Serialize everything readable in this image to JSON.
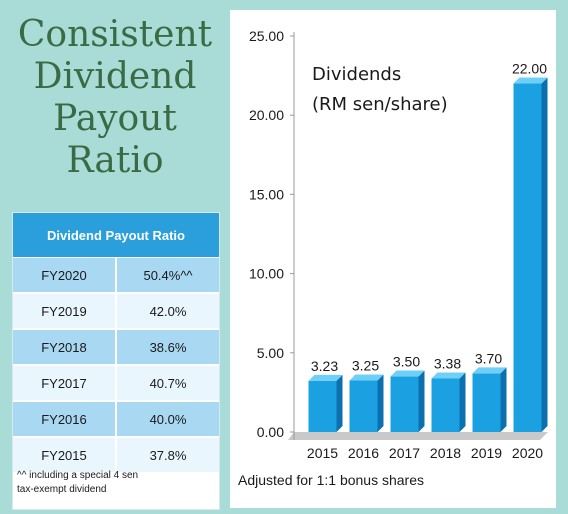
{
  "title_lines": [
    "Consistent",
    "Dividend",
    "Payout",
    "Ratio"
  ],
  "payout_table": {
    "header": "Dividend Payout Ratio",
    "rows": [
      {
        "year": "FY2020",
        "ratio": "50.4%^^"
      },
      {
        "year": "FY2019",
        "ratio": "42.0%"
      },
      {
        "year": "FY2018",
        "ratio": "38.6%"
      },
      {
        "year": "FY2017",
        "ratio": "40.7%"
      },
      {
        "year": "FY2016",
        "ratio": "40.0%"
      },
      {
        "year": "FY2015",
        "ratio": "37.8%"
      }
    ],
    "footnote_line1": "^^ including a special 4 sen",
    "footnote_line2": "tax-exempt dividend"
  },
  "chart_note": "Adjusted for 1:1 bonus shares",
  "colors": {
    "bar": "#1ba1e2",
    "bar_top": "#6fd0f7",
    "bar_side": "#0c6fae",
    "table_header": "#2a9fdc",
    "title": "#3b6b45"
  },
  "chart_data": {
    "type": "bar",
    "categories": [
      "2015",
      "2016",
      "2017",
      "2018",
      "2019",
      "2020"
    ],
    "values": [
      3.23,
      3.25,
      3.5,
      3.38,
      3.7,
      22.0
    ],
    "data_labels": [
      "3.23",
      "3.25",
      "3.50",
      "3.38",
      "3.70",
      "22.00"
    ],
    "title_line1": "Dividends",
    "title_line2": "(RM sen/share)",
    "ylim": [
      0,
      25
    ],
    "yticks": [
      "0.00",
      "5.00",
      "10.00",
      "15.00",
      "20.00",
      "25.00"
    ],
    "ytick_values": [
      0,
      5,
      10,
      15,
      20,
      25
    ],
    "grid": false,
    "style": "3d"
  }
}
